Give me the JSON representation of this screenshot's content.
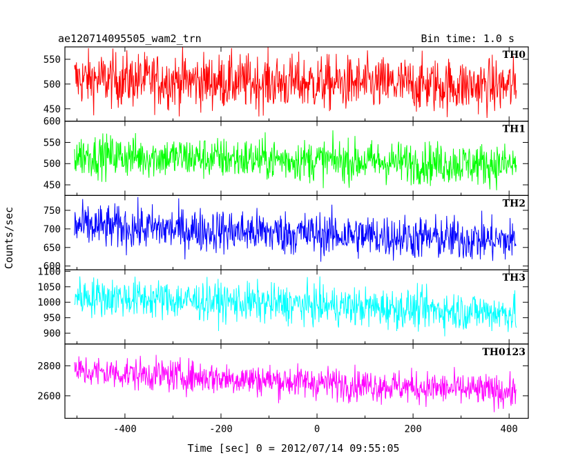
{
  "chart_data": {
    "type": "line",
    "title": "ae120714095505_wam2_trn",
    "subtitle": "Bin time: 1.0 s",
    "xlabel": "Time [sec] 0 = 2012/07/14 09:55:05",
    "ylabel": "Counts/sec",
    "xlim": [
      -525,
      440
    ],
    "x_ticks": [
      -400,
      -200,
      0,
      200,
      400
    ],
    "x_range": [
      -505,
      415
    ],
    "bin_time": 1.0,
    "grid": false,
    "panels": [
      {
        "name": "TH0",
        "color": "#ff0000",
        "ylim": [
          425,
          575
        ],
        "yticks": [
          450,
          500,
          550
        ],
        "start_mean": 510,
        "end_mean": 495,
        "noise": 28
      },
      {
        "name": "TH1",
        "color": "#00ff00",
        "ylim": [
          425,
          600
        ],
        "yticks": [
          450,
          500,
          550,
          600
        ],
        "start_mean": 520,
        "end_mean": 497,
        "noise": 25
      },
      {
        "name": "TH2",
        "color": "#0000ff",
        "ylim": [
          590,
          790
        ],
        "yticks": [
          600,
          650,
          700,
          750
        ],
        "start_mean": 708,
        "end_mean": 668,
        "noise": 30
      },
      {
        "name": "TH3",
        "color": "#00ffff",
        "ylim": [
          865,
          1105
        ],
        "yticks": [
          900,
          950,
          1000,
          1050,
          1100
        ],
        "start_mean": 1020,
        "end_mean": 965,
        "noise": 32
      },
      {
        "name": "TH0123",
        "color": "#ff00ff",
        "ylim": [
          2450,
          2945
        ],
        "yticks": [
          2600,
          2800
        ],
        "start_mean": 2765,
        "end_mean": 2625,
        "noise": 55
      }
    ]
  }
}
